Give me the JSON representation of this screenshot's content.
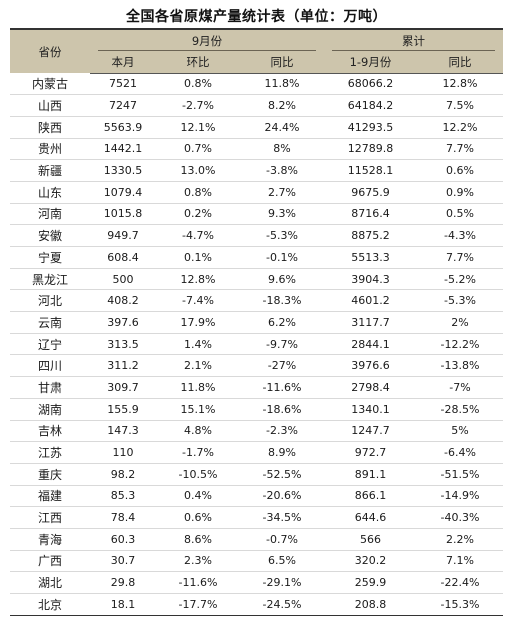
{
  "title": "全国各省原煤产量统计表（单位：万吨）",
  "header": {
    "province": "省份",
    "group_month": "9月份",
    "group_cum": "累计",
    "cols": [
      "本月",
      "环比",
      "同比",
      "1-9月份",
      "同比"
    ]
  },
  "colors": {
    "header_bg": "#cdc5ac",
    "rule": "#333333"
  },
  "rows": [
    [
      "内蒙古",
      "7521",
      "0.8%",
      "11.8%",
      "68066.2",
      "12.8%"
    ],
    [
      "山西",
      "7247",
      "-2.7%",
      "8.2%",
      "64184.2",
      "7.5%"
    ],
    [
      "陕西",
      "5563.9",
      "12.1%",
      "24.4%",
      "41293.5",
      "12.2%"
    ],
    [
      "贵州",
      "1442.1",
      "0.7%",
      "8%",
      "12789.8",
      "7.7%"
    ],
    [
      "新疆",
      "1330.5",
      "13.0%",
      "-3.8%",
      "11528.1",
      "0.6%"
    ],
    [
      "山东",
      "1079.4",
      "0.8%",
      "2.7%",
      "9675.9",
      "0.9%"
    ],
    [
      "河南",
      "1015.8",
      "0.2%",
      "9.3%",
      "8716.4",
      "0.5%"
    ],
    [
      "安徽",
      "949.7",
      "-4.7%",
      "-5.3%",
      "8875.2",
      "-4.3%"
    ],
    [
      "宁夏",
      "608.4",
      "0.1%",
      "-0.1%",
      "5513.3",
      "7.7%"
    ],
    [
      "黑龙江",
      "500",
      "12.8%",
      "9.6%",
      "3904.3",
      "-5.2%"
    ],
    [
      "河北",
      "408.2",
      "-7.4%",
      "-18.3%",
      "4601.2",
      "-5.3%"
    ],
    [
      "云南",
      "397.6",
      "17.9%",
      "6.2%",
      "3117.7",
      "2%"
    ],
    [
      "辽宁",
      "313.5",
      "1.4%",
      "-9.7%",
      "2844.1",
      "-12.2%"
    ],
    [
      "四川",
      "311.2",
      "2.1%",
      "-27%",
      "3976.6",
      "-13.8%"
    ],
    [
      "甘肃",
      "309.7",
      "11.8%",
      "-11.6%",
      "2798.4",
      "-7%"
    ],
    [
      "湖南",
      "155.9",
      "15.1%",
      "-18.6%",
      "1340.1",
      "-28.5%"
    ],
    [
      "吉林",
      "147.3",
      "4.8%",
      "-2.3%",
      "1247.7",
      "5%"
    ],
    [
      "江苏",
      "110",
      "-1.7%",
      "8.9%",
      "972.7",
      "-6.4%"
    ],
    [
      "重庆",
      "98.2",
      "-10.5%",
      "-52.5%",
      "891.1",
      "-51.5%"
    ],
    [
      "福建",
      "85.3",
      "0.4%",
      "-20.6%",
      "866.1",
      "-14.9%"
    ],
    [
      "江西",
      "78.4",
      "0.6%",
      "-34.5%",
      "644.6",
      "-40.3%"
    ],
    [
      "青海",
      "60.3",
      "8.6%",
      "-0.7%",
      "566",
      "2.2%"
    ],
    [
      "广西",
      "30.7",
      "2.3%",
      "6.5%",
      "320.2",
      "7.1%"
    ],
    [
      "湖北",
      "29.8",
      "-11.6%",
      "-29.1%",
      "259.9",
      "-22.4%"
    ],
    [
      "北京",
      "18.1",
      "-17.7%",
      "-24.5%",
      "208.8",
      "-15.3%"
    ]
  ]
}
